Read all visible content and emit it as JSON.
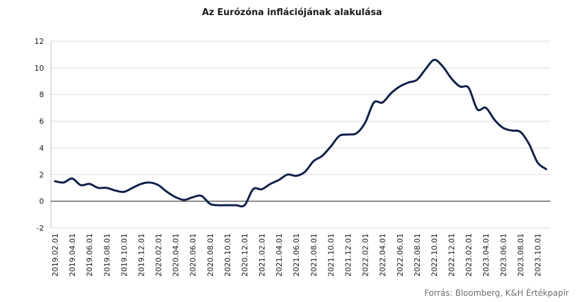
{
  "chart_data": {
    "type": "line",
    "title": "Az Eurózóna inflációjának alakulása",
    "source": "Forrás: Bloomberg,  K&H Értékpapír",
    "ylim": [
      -2,
      12
    ],
    "yticks": [
      -2,
      0,
      2,
      4,
      6,
      8,
      10,
      12
    ],
    "grid": "horizontal",
    "legend": "none",
    "line_color": "#0d1f4c",
    "x_tick_labels": [
      "2019.02.01",
      "2019.04.01",
      "2019.06.01",
      "2019.08.01",
      "2019.10.01",
      "2019.12.01",
      "2020.02.01",
      "2020.04.01",
      "2020.06.01",
      "2020.08.01",
      "2020.10.01",
      "2020.12.01",
      "2021.02.01",
      "2021.04.01",
      "2021.06.01",
      "2021.08.01",
      "2021.10.01",
      "2021.12.01",
      "2022.02.01",
      "2022.04.01",
      "2022.06.01",
      "2022.08.01",
      "2022.10.01",
      "2022.12.01",
      "2023.02.01",
      "2023.04.01",
      "2023.06.01",
      "2023.08.01",
      "2023.10.01"
    ],
    "series": [
      {
        "x": [
          "2019.02",
          "2019.03",
          "2019.04",
          "2019.05",
          "2019.06",
          "2019.07",
          "2019.08",
          "2019.09",
          "2019.10",
          "2019.11",
          "2019.12",
          "2020.01",
          "2020.02",
          "2020.03",
          "2020.04",
          "2020.05",
          "2020.06",
          "2020.07",
          "2020.08",
          "2020.09",
          "2020.10",
          "2020.11",
          "2020.12",
          "2021.01",
          "2021.02",
          "2021.03",
          "2021.04",
          "2021.05",
          "2021.06",
          "2021.07",
          "2021.08",
          "2021.09",
          "2021.10",
          "2021.11",
          "2021.12",
          "2022.01",
          "2022.02",
          "2022.03",
          "2022.04",
          "2022.05",
          "2022.06",
          "2022.07",
          "2022.08",
          "2022.09",
          "2022.10",
          "2022.11",
          "2022.12",
          "2023.01",
          "2023.02",
          "2023.03",
          "2023.04",
          "2023.05",
          "2023.06",
          "2023.07",
          "2023.08",
          "2023.09",
          "2023.10",
          "2023.11"
        ],
        "values": [
          1.5,
          1.4,
          1.7,
          1.2,
          1.3,
          1.0,
          1.0,
          0.8,
          0.7,
          1.0,
          1.3,
          1.4,
          1.2,
          0.7,
          0.3,
          0.1,
          0.3,
          0.4,
          -0.2,
          -0.3,
          -0.3,
          -0.3,
          -0.3,
          0.9,
          0.9,
          1.3,
          1.6,
          2.0,
          1.9,
          2.2,
          3.0,
          3.4,
          4.1,
          4.9,
          5.0,
          5.1,
          5.9,
          7.4,
          7.4,
          8.1,
          8.6,
          8.9,
          9.1,
          9.9,
          10.6,
          10.1,
          9.2,
          8.6,
          8.5,
          6.9,
          7.0,
          6.1,
          5.5,
          5.3,
          5.2,
          4.3,
          2.9,
          2.4
        ]
      }
    ]
  }
}
